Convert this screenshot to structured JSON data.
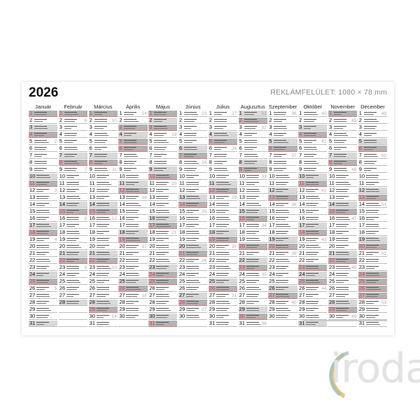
{
  "calendar": {
    "year": "2026",
    "ad_space": "REKLÁMFELÜLET: 1080 × 78 mm",
    "months": [
      "Január",
      "Február",
      "Március",
      "Április",
      "Május",
      "Június",
      "Július",
      "Augusztus",
      "Szeptember",
      "Október",
      "November",
      "December"
    ],
    "holidays": [
      "01-01",
      "04-03",
      "04-05",
      "04-06",
      "05-01",
      "05-24",
      "05-25",
      "08-20",
      "10-23",
      "11-01",
      "12-24",
      "12-25",
      "12-26"
    ],
    "colors": {
      "saturday": "#d9d9d9",
      "sunday_holiday": "#b3b3b3",
      "holiday_number": "#e0334a",
      "week_number": "#aaaaaa"
    }
  },
  "logo": {
    "text": "iroda",
    "colors": [
      "#e9c77a",
      "#9fc0c4",
      "#e2e2e2"
    ]
  }
}
